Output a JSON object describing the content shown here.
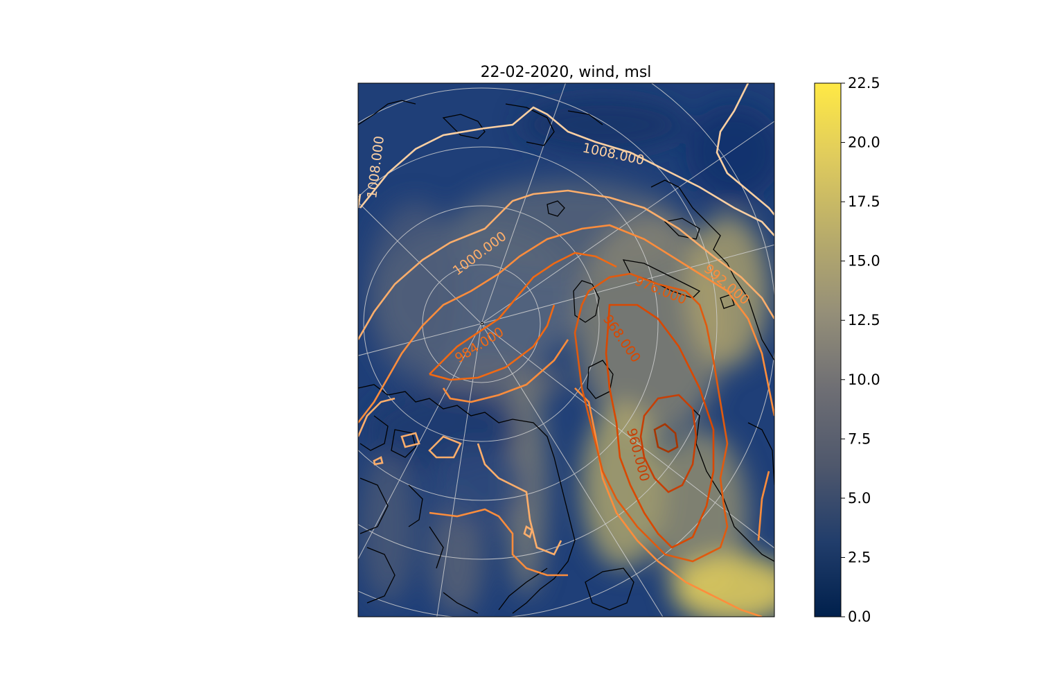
{
  "title": "22-02-2020, wind, msl",
  "colorbar": {
    "min": 0.0,
    "max": 22.5,
    "ticks": [
      "0.0",
      "2.5",
      "5.0",
      "7.5",
      "10.0",
      "12.5",
      "15.0",
      "17.5",
      "20.0",
      "22.5"
    ],
    "colors": [
      "#00204c",
      "#213d6b",
      "#4e576c",
      "#6f6f74",
      "#958f78",
      "#b7ab6b",
      "#dfcb5d",
      "#ffe945"
    ]
  },
  "contours": {
    "labels": [
      "1008.000",
      "1008.000",
      "1000.000",
      "984.000",
      "976.000",
      "992.000",
      "968.000",
      "960.000"
    ],
    "colors": {
      "1008": "#fdd0a2",
      "1000": "#fdae6b",
      "992": "#fd8d3c",
      "984": "#f16913",
      "976": "#e05a0f",
      "968": "#d94801",
      "960": "#c63f06",
      "952": "#a63603"
    }
  },
  "map": {
    "ocean_color": "#1f3f78",
    "coastline_color": "#000000",
    "graticule_color": "#cccccc"
  }
}
